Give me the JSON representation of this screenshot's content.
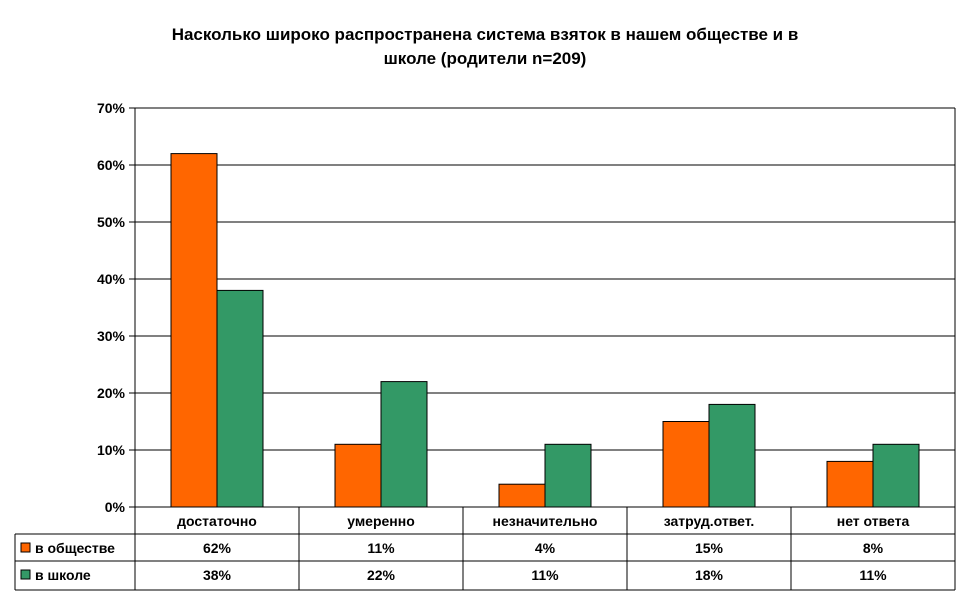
{
  "chart_data": {
    "type": "bar",
    "title_lines": [
      "Насколько широко распространена система взяток в нашем обществе и в",
      "школе (родители n=209)"
    ],
    "categories": [
      "достаточно",
      "умеренно",
      "незначительно",
      "затруд.ответ.",
      "нет ответа"
    ],
    "series": [
      {
        "name": "в обществе",
        "color": "#ff6600",
        "values": [
          62,
          11,
          4,
          15,
          8
        ],
        "labels": [
          "62%",
          "11%",
          "4%",
          "15%",
          "8%"
        ]
      },
      {
        "name": "в школе",
        "color": "#339966",
        "values": [
          38,
          22,
          11,
          18,
          11
        ],
        "labels": [
          "38%",
          "22%",
          "11%",
          "18%",
          "11%"
        ]
      }
    ],
    "ylim": [
      0,
      70
    ],
    "yticks": [
      "0%",
      "10%",
      "20%",
      "30%",
      "40%",
      "50%",
      "60%",
      "70%"
    ],
    "grid": true,
    "legend": "data-table"
  }
}
